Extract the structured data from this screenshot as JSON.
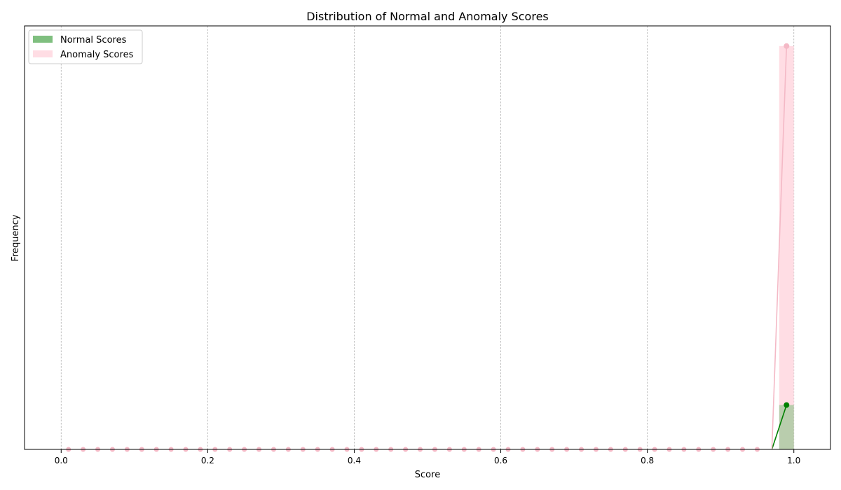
{
  "chart_data": {
    "type": "bar",
    "title": "Distribution of Normal and Anomaly Scores",
    "xlabel": "Score",
    "ylabel": "Frequency",
    "xlim": [
      -0.05,
      1.05
    ],
    "ylim": [
      0,
      1.05
    ],
    "x_ticks": [
      0.0,
      0.2,
      0.4,
      0.6,
      0.8,
      1.0
    ],
    "x_tick_labels": [
      "0.0",
      "0.2",
      "0.4",
      "0.6",
      "0.8",
      "1.0"
    ],
    "y_ticks_visible": false,
    "grid": "vertical dashed",
    "legend_position": "top-left",
    "bin_width": 0.02,
    "series": [
      {
        "name": "Normal Scores",
        "bar_color": "#7fbf7f",
        "line_color": "#008000",
        "bins": [
          {
            "center": 0.99,
            "value": 0.11
          }
        ],
        "line_x": [
          0.97,
          0.99
        ],
        "line_y": [
          0.0,
          0.11
        ]
      },
      {
        "name": "Anomaly Scores",
        "bar_color": "#ffdde4",
        "line_color": "#f4b9c6",
        "bins": [
          {
            "center": 0.99,
            "value": 1.0
          }
        ],
        "line_x": [
          0.97,
          0.99
        ],
        "line_y": [
          0.0,
          1.0
        ],
        "zero_markers_x_start": 0.01,
        "zero_markers_x_step": 0.02,
        "zero_markers_count": 48
      }
    ]
  }
}
